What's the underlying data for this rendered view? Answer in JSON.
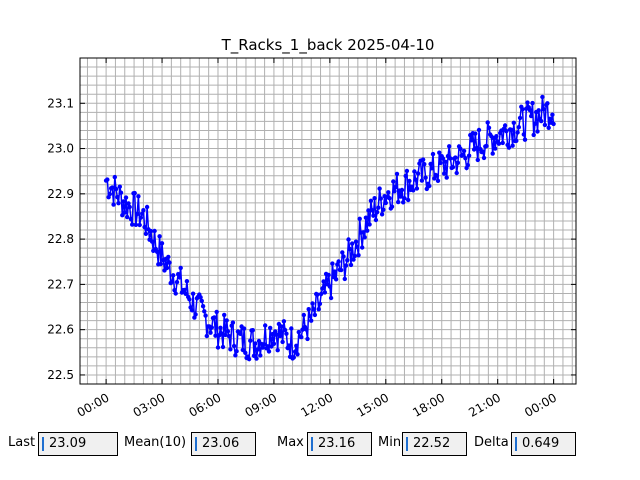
{
  "chart_data": {
    "type": "line",
    "title": "T_Racks_1_back 2025-04-10",
    "xlabel": "",
    "ylabel": "",
    "x_tick_labels": [
      "00:00",
      "03:00",
      "06:00",
      "09:00",
      "12:00",
      "15:00",
      "18:00",
      "21:00",
      "00:00"
    ],
    "x_range_hours": [
      -1.4,
      25.2
    ],
    "ylim": [
      22.48,
      23.2
    ],
    "y_ticks": [
      22.5,
      22.6,
      22.7,
      22.8,
      22.9,
      23.0,
      23.1
    ],
    "grid": true,
    "series": [
      {
        "color": "#0000ff",
        "marker": "circle",
        "x_hours": [
          0,
          1,
          2,
          3,
          4,
          5,
          6,
          7,
          8,
          9,
          10,
          11,
          12,
          13,
          14,
          15,
          16,
          17,
          18,
          19,
          20,
          21,
          22,
          23,
          24
        ],
        "values": [
          22.93,
          22.88,
          22.85,
          22.76,
          22.7,
          22.64,
          22.6,
          22.58,
          22.57,
          22.6,
          22.57,
          22.62,
          22.7,
          22.76,
          22.84,
          22.9,
          22.92,
          22.94,
          22.96,
          22.98,
          23.01,
          23.03,
          23.05,
          23.07,
          23.09
        ],
        "noise_amplitude": 0.04
      }
    ]
  },
  "stats": {
    "last_label": "Last",
    "last_value": "23.09",
    "mean_label": "Mean(10)",
    "mean_value": "23.06",
    "max_label": "Max",
    "max_value": "23.16",
    "min_label": "Min",
    "min_value": "22.52",
    "delta_label": "Delta",
    "delta_value": "0.649"
  }
}
